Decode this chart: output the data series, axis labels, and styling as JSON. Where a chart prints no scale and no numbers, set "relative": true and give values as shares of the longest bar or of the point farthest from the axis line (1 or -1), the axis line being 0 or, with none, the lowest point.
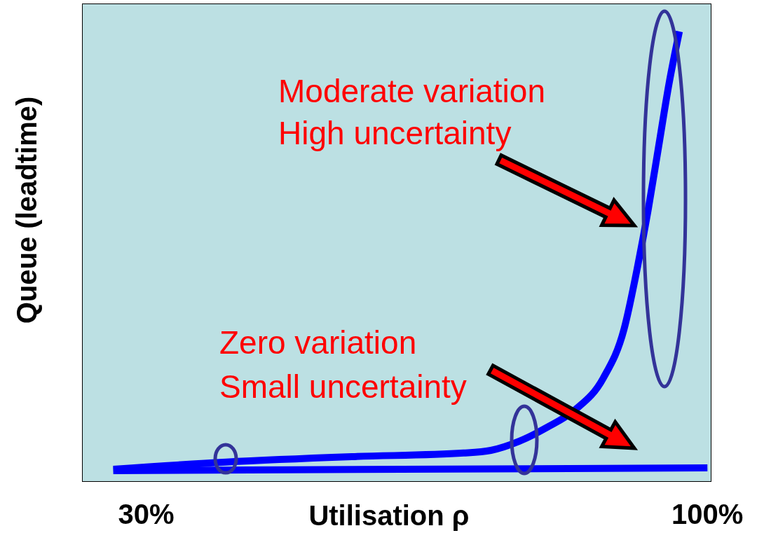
{
  "chart_data": {
    "type": "line",
    "xlabel": "Utilisation ρ",
    "ylabel": "Queue (leadtime)",
    "relative": true,
    "xlim": [
      22,
      100.5
    ],
    "xticks": [
      {
        "value": 30,
        "label": "30%"
      },
      {
        "value": 100,
        "label": "100%"
      }
    ],
    "annotations": [
      "Moderate variation",
      "High uncertainty",
      "Zero variation",
      "Small uncertainty"
    ],
    "series": [
      {
        "color": "#0000ff",
        "x": [
          25.9,
          100
        ],
        "values": [
          0.025,
          0.031
        ]
      },
      {
        "color": "#0000ff",
        "x": [
          25.9,
          40,
          55.65,
          69.6,
          73,
          76.5,
          80,
          83.5,
          87,
          89.6,
          91.3,
          92.6,
          93.9,
          95.2,
          96.5
        ],
        "values": [
          0.028,
          0.044,
          0.056,
          0.064,
          0.07,
          0.09,
          0.121,
          0.16,
          0.23,
          0.339,
          0.479,
          0.603,
          0.743,
          0.883,
          1
        ]
      }
    ]
  }
}
